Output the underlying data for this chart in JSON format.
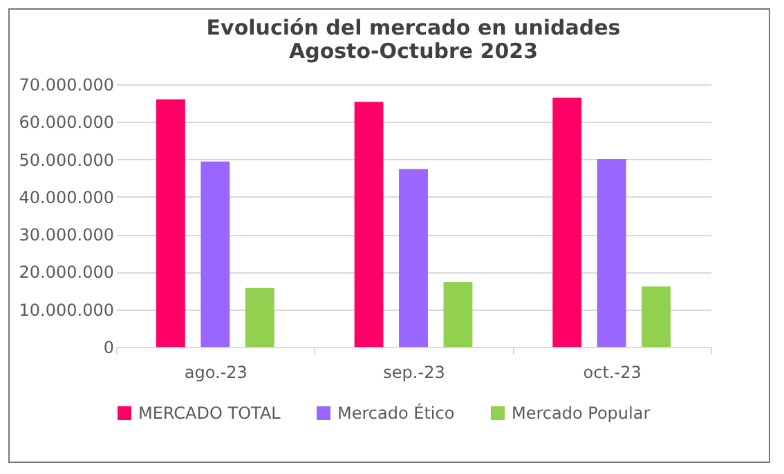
{
  "chart_data": {
    "type": "bar",
    "title": "Evolución del mercado en unidades\nAgosto-Octubre 2023",
    "categories": [
      "ago.-23",
      "sep.-23",
      "oct.-23"
    ],
    "series": [
      {
        "name": "MERCADO TOTAL",
        "color": "#ff0066",
        "values": [
          66000000,
          65300000,
          66400000
        ]
      },
      {
        "name": "Mercado Ético",
        "color": "#9966ff",
        "values": [
          49400000,
          47400000,
          50100000
        ]
      },
      {
        "name": "Mercado Popular",
        "color": "#92d050",
        "values": [
          15700000,
          17300000,
          16100000
        ]
      }
    ],
    "ylim": [
      0,
      70000000
    ],
    "yticks": [
      {
        "value": 0,
        "label": "0"
      },
      {
        "value": 10000000,
        "label": "10.000.000"
      },
      {
        "value": 20000000,
        "label": "20.000.000"
      },
      {
        "value": 30000000,
        "label": "30.000.000"
      },
      {
        "value": 40000000,
        "label": "40.000.000"
      },
      {
        "value": 50000000,
        "label": "50.000.000"
      },
      {
        "value": 60000000,
        "label": "60.000.000"
      },
      {
        "value": 70000000,
        "label": "70.000.000"
      }
    ],
    "grid": "y",
    "legend": "bottom"
  }
}
